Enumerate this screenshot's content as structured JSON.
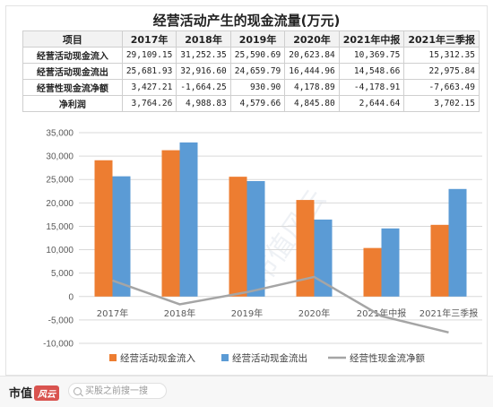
{
  "title": "经营活动产生的现金流量(万元)",
  "table": {
    "headers": [
      "项目",
      "2017年",
      "2018年",
      "2019年",
      "2020年",
      "2021年中报",
      "2021年三季报"
    ],
    "rows": [
      {
        "label": "经营活动现金流入",
        "values": [
          "29,109.15",
          "31,252.35",
          "25,590.69",
          "20,623.84",
          "10,369.75",
          "15,312.35"
        ]
      },
      {
        "label": "经营活动现金流出",
        "values": [
          "25,681.93",
          "32,916.60",
          "24,659.79",
          "16,444.96",
          "14,548.66",
          "22,975.84"
        ]
      },
      {
        "label": "经营性现金流净额",
        "values": [
          "3,427.21",
          "-1,664.25",
          "930.90",
          "4,178.89",
          "-4,178.91",
          "-7,663.49"
        ]
      },
      {
        "label": "净利润",
        "values": [
          "3,764.26",
          "4,988.83",
          "4,579.66",
          "4,845.80",
          "2,644.64",
          "3,702.15"
        ]
      }
    ]
  },
  "chart_data": {
    "type": "bar",
    "categories": [
      "2017年",
      "2018年",
      "2019年",
      "2020年",
      "2021年中报",
      "2021年三季报"
    ],
    "series": [
      {
        "name": "经营活动现金流入",
        "type": "bar",
        "color": "#ed7d31",
        "values": [
          29109.15,
          31252.35,
          25590.69,
          20623.84,
          10369.75,
          15312.35
        ]
      },
      {
        "name": "经营活动现金流出",
        "type": "bar",
        "color": "#5b9bd5",
        "values": [
          25681.93,
          32916.6,
          24659.79,
          16444.96,
          14548.66,
          22975.84
        ]
      },
      {
        "name": "经营性现金流净额",
        "type": "line",
        "color": "#a5a5a5",
        "values": [
          3427.21,
          -1664.25,
          930.9,
          4178.89,
          -4178.91,
          -7663.49
        ]
      }
    ],
    "ylim": [
      -10000,
      35000
    ],
    "yticks": [
      {
        "value": 35000,
        "label": "35,000"
      },
      {
        "value": 30000,
        "label": "30,000"
      },
      {
        "value": 25000,
        "label": "25,000"
      },
      {
        "value": 20000,
        "label": "20,000"
      },
      {
        "value": 15000,
        "label": "15,000"
      },
      {
        "value": 10000,
        "label": "10,000"
      },
      {
        "value": 5000,
        "label": "5,000"
      },
      {
        "value": 0,
        "label": "0"
      },
      {
        "value": -5000,
        "label": "-5,000"
      },
      {
        "value": -10000,
        "label": "-10,000"
      }
    ],
    "grid": true,
    "legend": "bottom"
  },
  "footer": {
    "brand": "市值",
    "badge": "风云",
    "search_placeholder": "买股之前搜一搜"
  },
  "watermark": "市值风云"
}
